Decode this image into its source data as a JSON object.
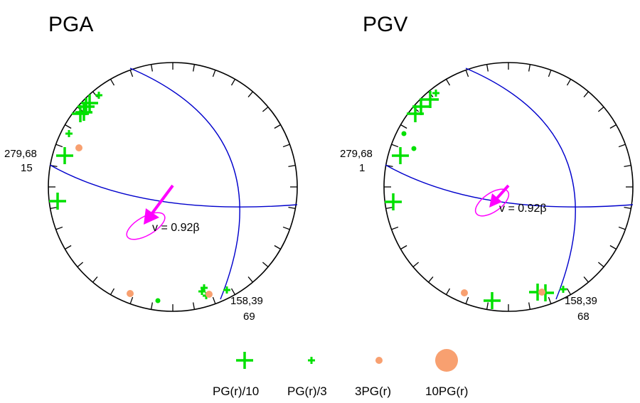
{
  "panels": [
    {
      "id": "pga",
      "title": "PGA",
      "plane1_label": "279,68",
      "plane1_value": "15",
      "plane2_label": "158,39",
      "plane2_value": "69",
      "velocity_label": "v = 0.92β",
      "markers": [
        {
          "kind": "plus_large"
        },
        {
          "kind": "plus_large"
        },
        {
          "kind": "plus_large"
        },
        {
          "kind": "plus_large"
        },
        {
          "kind": "plus_small"
        },
        {
          "kind": "plus_small"
        },
        {
          "kind": "plus_large"
        },
        {
          "kind": "circle_small"
        },
        {
          "kind": "plus_large"
        },
        {
          "kind": "plus_small"
        },
        {
          "kind": "plus_small"
        },
        {
          "kind": "plus_small"
        },
        {
          "kind": "plus_small"
        },
        {
          "kind": "circle_small"
        },
        {
          "kind": "circle_small"
        },
        {
          "kind": "dot_green"
        }
      ]
    },
    {
      "id": "pgv",
      "title": "PGV",
      "plane1_label": "279,68",
      "plane1_value": "1",
      "plane2_label": "158,39",
      "plane2_value": "68",
      "velocity_label": "v = 0.92β",
      "markers": [
        {
          "kind": "plus_large"
        },
        {
          "kind": "plus_large"
        },
        {
          "kind": "plus_large"
        },
        {
          "kind": "plus_small"
        },
        {
          "kind": "dot_green"
        },
        {
          "kind": "dot_green"
        },
        {
          "kind": "plus_large"
        },
        {
          "kind": "plus_large"
        },
        {
          "kind": "plus_large"
        },
        {
          "kind": "plus_large"
        },
        {
          "kind": "plus_large"
        },
        {
          "kind": "plus_small"
        },
        {
          "kind": "circle_small"
        },
        {
          "kind": "circle_small"
        }
      ]
    }
  ],
  "legend": [
    {
      "symbol": "plus_large",
      "label": "PG(r)/10"
    },
    {
      "symbol": "plus_small",
      "label": "PG(r)/3"
    },
    {
      "symbol": "circle_small",
      "label": "3PG(r)"
    },
    {
      "symbol": "circle_large",
      "label": "10PG(r)"
    }
  ],
  "colors": {
    "stereonet_outline": "#000000",
    "fault_planes": "#0000cc",
    "velocity_arrow": "#ff00ff",
    "plus_markers": "#00e000",
    "circle_markers": "#f8a070"
  }
}
